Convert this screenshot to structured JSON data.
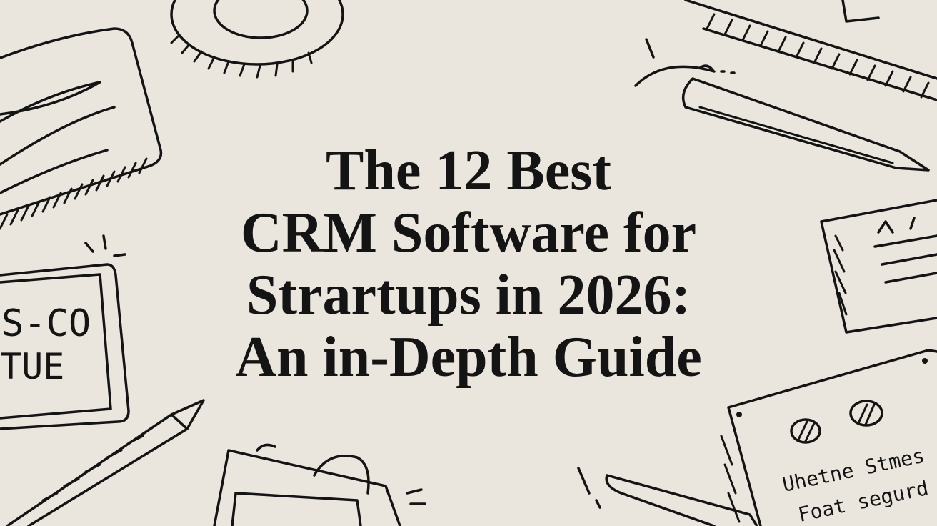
{
  "title": {
    "lines": [
      "The 12 Best",
      "CRM Software for",
      "Strartups in 2026:",
      "An in-Depth Guide"
    ]
  },
  "doodles": {
    "left_card": [
      "S-CO",
      "TUE"
    ],
    "right_note": [
      "Uhetne Stmes",
      "Foat segurd"
    ]
  }
}
